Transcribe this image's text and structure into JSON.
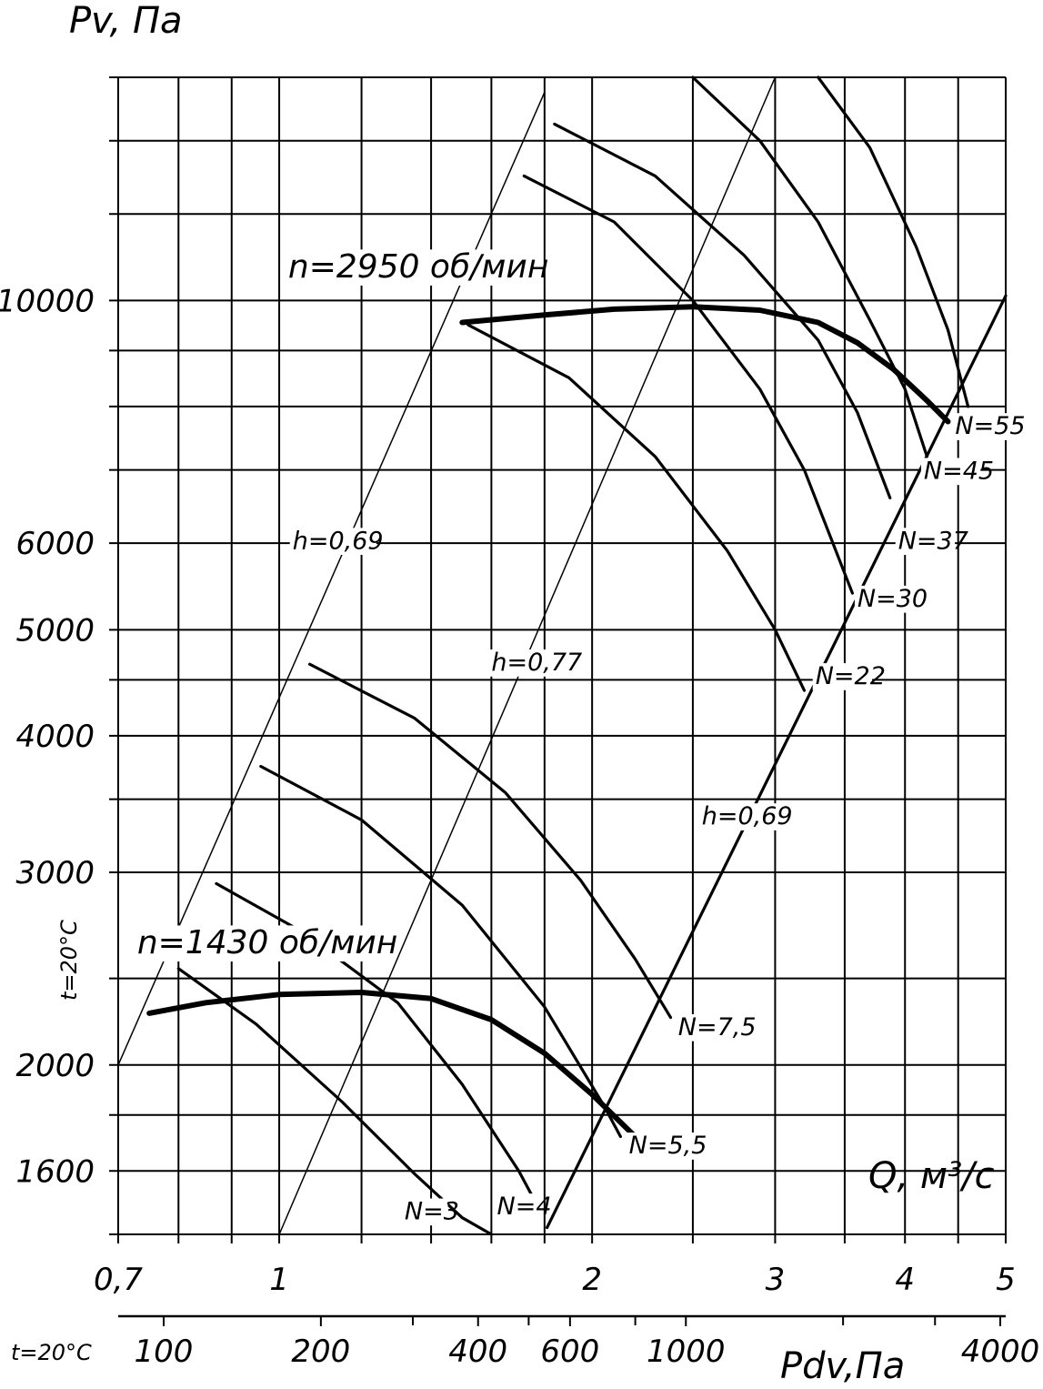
{
  "chart_data": {
    "type": "line",
    "title": "",
    "ylabel": "Pv, Па",
    "xlabel": "Q, м³/с",
    "x2label": "Pdv,Па",
    "temperature_note": "t=20°C",
    "x_scale": "log",
    "y_scale": "log",
    "xlim": [
      0.7,
      5
    ],
    "ylim": [
      1400,
      16000
    ],
    "x_ticks": [
      {
        "value": 0.7,
        "label": "0,7"
      },
      {
        "value": 1,
        "label": "1"
      },
      {
        "value": 2,
        "label": "2"
      },
      {
        "value": 3,
        "label": "3"
      },
      {
        "value": 4,
        "label": "4"
      },
      {
        "value": 5,
        "label": "5"
      }
    ],
    "x_gridlines": [
      0.7,
      0.8,
      0.9,
      1,
      1.2,
      1.4,
      1.6,
      1.8,
      2,
      2.5,
      3,
      3.5,
      4,
      4.5,
      5
    ],
    "y_ticks": [
      {
        "value": 1600,
        "label": "1600"
      },
      {
        "value": 2000,
        "label": "2000"
      },
      {
        "value": 3000,
        "label": "3000"
      },
      {
        "value": 4000,
        "label": "4000"
      },
      {
        "value": 5000,
        "label": "5000"
      },
      {
        "value": 6000,
        "label": "6000"
      },
      {
        "value": 10000,
        "label": "10000"
      }
    ],
    "y_gridlines": [
      1400,
      1600,
      1800,
      2000,
      2400,
      3000,
      3500,
      4000,
      4500,
      5000,
      6000,
      7000,
      8000,
      9000,
      10000,
      12000,
      14000,
      16000
    ],
    "pdv_ticks": [
      {
        "value": 100,
        "label": "100"
      },
      {
        "value": 200,
        "label": "200"
      },
      {
        "value": 400,
        "label": "400"
      },
      {
        "value": 600,
        "label": "600"
      },
      {
        "value": 1000,
        "label": "1000"
      },
      {
        "value": 4000,
        "label": "4000"
      }
    ],
    "pdv_minor_ticks": [
      300,
      500,
      800,
      2000,
      3000
    ],
    "grid": true,
    "series": [
      {
        "name": "n=2950 об/мин",
        "style": "heavy",
        "x": [
          1.5,
          1.8,
          2.1,
          2.5,
          2.9,
          3.3,
          3.6,
          3.9,
          4.2,
          4.4
        ],
        "y": [
          9550,
          9700,
          9820,
          9870,
          9800,
          9550,
          9150,
          8650,
          8100,
          7750
        ]
      },
      {
        "name": "n=1430 об/мин",
        "style": "heavy",
        "x": [
          0.75,
          0.85,
          1.0,
          1.2,
          1.4,
          1.6,
          1.8,
          2.0,
          2.2
        ],
        "y": [
          2230,
          2280,
          2320,
          2330,
          2300,
          2200,
          2050,
          1880,
          1720
        ]
      },
      {
        "name": "h=0,69",
        "style": "thin",
        "x": [
          0.7,
          1.8
        ],
        "y": [
          2000,
          15500
        ]
      },
      {
        "name": "h=0,77",
        "style": "thin",
        "x": [
          1.0,
          3.0
        ],
        "y": [
          1400,
          16000
        ]
      },
      {
        "name": "h=0,69",
        "style": "medium",
        "x": [
          1.81,
          5.0
        ],
        "y": [
          1420,
          10100
        ]
      },
      {
        "name": "N=3",
        "style": "medium",
        "x": [
          0.8,
          0.95,
          1.15,
          1.35,
          1.5,
          1.6
        ],
        "y": [
          2450,
          2180,
          1850,
          1590,
          1450,
          1400
        ]
      },
      {
        "name": "N=4",
        "style": "medium",
        "x": [
          0.87,
          1.05,
          1.3,
          1.5,
          1.7,
          1.75
        ],
        "y": [
          2930,
          2650,
          2280,
          1920,
          1600,
          1520
        ]
      },
      {
        "name": "N=5,5",
        "style": "medium",
        "x": [
          0.96,
          1.2,
          1.5,
          1.8,
          2.05,
          2.13
        ],
        "y": [
          3750,
          3350,
          2800,
          2260,
          1840,
          1720
        ]
      },
      {
        "name": "N=7,5",
        "style": "medium",
        "x": [
          1.07,
          1.35,
          1.65,
          1.95,
          2.2,
          2.38
        ],
        "y": [
          4650,
          4150,
          3550,
          2950,
          2500,
          2210
        ]
      },
      {
        "name": "N=22",
        "style": "medium",
        "x": [
          1.52,
          1.9,
          2.3,
          2.7,
          3.0,
          3.2
        ],
        "y": [
          9500,
          8500,
          7200,
          5900,
          5000,
          4400
        ]
      },
      {
        "name": "N=30",
        "style": "medium",
        "x": [
          1.72,
          2.1,
          2.5,
          2.9,
          3.2,
          3.56
        ],
        "y": [
          13000,
          11800,
          10000,
          8300,
          7000,
          5400
        ]
      },
      {
        "name": "N=37",
        "style": "medium",
        "x": [
          1.84,
          2.3,
          2.8,
          3.3,
          3.6,
          3.87
        ],
        "y": [
          14500,
          13000,
          11000,
          9200,
          7900,
          6600
        ]
      },
      {
        "name": "N=45",
        "style": "medium",
        "x": [
          2.5,
          2.9,
          3.3,
          3.7,
          4.0,
          4.2
        ],
        "y": [
          16000,
          14000,
          11800,
          9600,
          8300,
          7200
        ]
      },
      {
        "name": "N=55",
        "style": "medium",
        "x": [
          3.3,
          3.7,
          4.1,
          4.4,
          4.6
        ],
        "y": [
          16000,
          13800,
          11200,
          9400,
          8000
        ]
      }
    ],
    "annotations": [
      {
        "text": "n=2950 об/мин",
        "x": 1.02,
        "y": 10500,
        "size": "big"
      },
      {
        "text": "n=1430 об/мин",
        "x": 0.73,
        "y": 2530,
        "size": "big"
      },
      {
        "text": "h=0,69",
        "x": 1.03,
        "y": 5930,
        "size": "ann"
      },
      {
        "text": "h=0,77",
        "x": 1.6,
        "y": 4590,
        "size": "ann"
      },
      {
        "text": "h=0,69",
        "x": 2.55,
        "y": 3320,
        "size": "ann"
      },
      {
        "text": "N=55",
        "x": 4.47,
        "y": 7550,
        "size": "ann"
      },
      {
        "text": "N=45",
        "x": 4.17,
        "y": 6870,
        "size": "ann"
      },
      {
        "text": "N=37",
        "x": 3.94,
        "y": 5930,
        "size": "ann"
      },
      {
        "text": "N=30",
        "x": 3.6,
        "y": 5250,
        "size": "ann"
      },
      {
        "text": "N=22",
        "x": 3.28,
        "y": 4460,
        "size": "ann"
      },
      {
        "text": "N=7,5",
        "x": 2.42,
        "y": 2130,
        "size": "ann"
      },
      {
        "text": "N=5,5",
        "x": 2.17,
        "y": 1660,
        "size": "ann"
      },
      {
        "text": "N=4",
        "x": 1.62,
        "y": 1460,
        "size": "ann"
      },
      {
        "text": "N=3",
        "x": 1.32,
        "y": 1445,
        "size": "ann"
      }
    ]
  }
}
